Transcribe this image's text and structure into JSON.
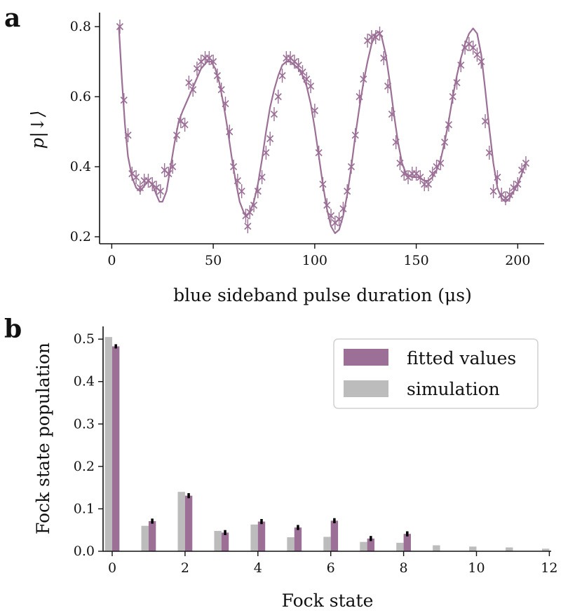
{
  "chart_data": [
    {
      "id": "a",
      "panel_label": "a",
      "type": "scatter",
      "xlabel": "blue sideband pulse duration (μs)",
      "ylabel": "p|↓⟩",
      "xlim": [
        -6,
        213
      ],
      "ylim": [
        0.18,
        0.84
      ],
      "xticks": [
        0,
        50,
        100,
        150,
        200
      ],
      "yticks": [
        0.2,
        0.4,
        0.6,
        0.8
      ],
      "color": "#9b6f96",
      "grid": false,
      "series": [
        {
          "name": "measured",
          "marker": "x",
          "points": [
            [
              4,
              0.8,
              0.02
            ],
            [
              6,
              0.59,
              0.02
            ],
            [
              8,
              0.49,
              0.02
            ],
            [
              10,
              0.38,
              0.02
            ],
            [
              12,
              0.37,
              0.02
            ],
            [
              14,
              0.34,
              0.02
            ],
            [
              16,
              0.36,
              0.02
            ],
            [
              18,
              0.36,
              0.02
            ],
            [
              20,
              0.35,
              0.02
            ],
            [
              22,
              0.34,
              0.02
            ],
            [
              24,
              0.33,
              0.02
            ],
            [
              26,
              0.39,
              0.02
            ],
            [
              28,
              0.38,
              0.02
            ],
            [
              30,
              0.4,
              0.02
            ],
            [
              32,
              0.49,
              0.02
            ],
            [
              34,
              0.53,
              0.02
            ],
            [
              36,
              0.52,
              0.02
            ],
            [
              38,
              0.64,
              0.02
            ],
            [
              40,
              0.62,
              0.02
            ],
            [
              42,
              0.68,
              0.02
            ],
            [
              44,
              0.7,
              0.02
            ],
            [
              46,
              0.71,
              0.02
            ],
            [
              48,
              0.71,
              0.02
            ],
            [
              50,
              0.7,
              0.02
            ],
            [
              52,
              0.66,
              0.02
            ],
            [
              54,
              0.62,
              0.02
            ],
            [
              56,
              0.58,
              0.02
            ],
            [
              58,
              0.5,
              0.02
            ],
            [
              60,
              0.4,
              0.02
            ],
            [
              62,
              0.36,
              0.02
            ],
            [
              64,
              0.33,
              0.02
            ],
            [
              66,
              0.26,
              0.02
            ],
            [
              67,
              0.23,
              0.02
            ],
            [
              68,
              0.27,
              0.02
            ],
            [
              70,
              0.29,
              0.02
            ],
            [
              72,
              0.33,
              0.02
            ],
            [
              74,
              0.37,
              0.02
            ],
            [
              76,
              0.44,
              0.02
            ],
            [
              78,
              0.48,
              0.02
            ],
            [
              80,
              0.55,
              0.02
            ],
            [
              82,
              0.6,
              0.02
            ],
            [
              84,
              0.66,
              0.02
            ],
            [
              86,
              0.71,
              0.02
            ],
            [
              88,
              0.71,
              0.02
            ],
            [
              90,
              0.7,
              0.02
            ],
            [
              92,
              0.69,
              0.02
            ],
            [
              94,
              0.67,
              0.02
            ],
            [
              96,
              0.65,
              0.02
            ],
            [
              98,
              0.63,
              0.02
            ],
            [
              100,
              0.56,
              0.02
            ],
            [
              102,
              0.44,
              0.02
            ],
            [
              104,
              0.35,
              0.02
            ],
            [
              106,
              0.29,
              0.02
            ],
            [
              108,
              0.26,
              0.02
            ],
            [
              110,
              0.24,
              0.02
            ],
            [
              112,
              0.25,
              0.02
            ],
            [
              114,
              0.28,
              0.02
            ],
            [
              116,
              0.33,
              0.02
            ],
            [
              118,
              0.4,
              0.02
            ],
            [
              120,
              0.49,
              0.02
            ],
            [
              122,
              0.6,
              0.02
            ],
            [
              124,
              0.65,
              0.02
            ],
            [
              126,
              0.76,
              0.02
            ],
            [
              128,
              0.77,
              0.02
            ],
            [
              130,
              0.77,
              0.02
            ],
            [
              132,
              0.78,
              0.02
            ],
            [
              134,
              0.71,
              0.02
            ],
            [
              136,
              0.63,
              0.02
            ],
            [
              138,
              0.55,
              0.02
            ],
            [
              140,
              0.47,
              0.02
            ],
            [
              142,
              0.41,
              0.02
            ],
            [
              144,
              0.38,
              0.02
            ],
            [
              146,
              0.37,
              0.02
            ],
            [
              148,
              0.38,
              0.02
            ],
            [
              150,
              0.38,
              0.02
            ],
            [
              152,
              0.37,
              0.02
            ],
            [
              154,
              0.35,
              0.02
            ],
            [
              156,
              0.35,
              0.02
            ],
            [
              158,
              0.38,
              0.02
            ],
            [
              160,
              0.4,
              0.02
            ],
            [
              162,
              0.41,
              0.02
            ],
            [
              164,
              0.47,
              0.02
            ],
            [
              166,
              0.52,
              0.02
            ],
            [
              168,
              0.6,
              0.02
            ],
            [
              170,
              0.64,
              0.02
            ],
            [
              172,
              0.69,
              0.02
            ],
            [
              174,
              0.74,
              0.02
            ],
            [
              176,
              0.75,
              0.02
            ],
            [
              178,
              0.74,
              0.02
            ],
            [
              180,
              0.72,
              0.02
            ],
            [
              182,
              0.7,
              0.02
            ],
            [
              184,
              0.53,
              0.02
            ],
            [
              186,
              0.44,
              0.02
            ],
            [
              188,
              0.33,
              0.02
            ],
            [
              190,
              0.37,
              0.02
            ],
            [
              192,
              0.32,
              0.02
            ],
            [
              194,
              0.31,
              0.02
            ],
            [
              196,
              0.32,
              0.02
            ],
            [
              198,
              0.34,
              0.02
            ],
            [
              200,
              0.35,
              0.02
            ],
            [
              202,
              0.39,
              0.02
            ],
            [
              204,
              0.41,
              0.02
            ]
          ]
        },
        {
          "name": "fit",
          "line": true,
          "points": [
            [
              3.5,
              0.8
            ],
            [
              5,
              0.65
            ],
            [
              6.5,
              0.52
            ],
            [
              8,
              0.43
            ],
            [
              10,
              0.37
            ],
            [
              12,
              0.34
            ],
            [
              14,
              0.33
            ],
            [
              16,
              0.345
            ],
            [
              18,
              0.36
            ],
            [
              20,
              0.35
            ],
            [
              22,
              0.32
            ],
            [
              23.5,
              0.3
            ],
            [
              25,
              0.3
            ],
            [
              27,
              0.33
            ],
            [
              29,
              0.4
            ],
            [
              31,
              0.47
            ],
            [
              33,
              0.53
            ],
            [
              35,
              0.56
            ],
            [
              38,
              0.6
            ],
            [
              41,
              0.64
            ],
            [
              44,
              0.68
            ],
            [
              47,
              0.7
            ],
            [
              49,
              0.7
            ],
            [
              51,
              0.68
            ],
            [
              53,
              0.64
            ],
            [
              55,
              0.58
            ],
            [
              57,
              0.51
            ],
            [
              59,
              0.43
            ],
            [
              61,
              0.36
            ],
            [
              63,
              0.3
            ],
            [
              65,
              0.27
            ],
            [
              66.5,
              0.26
            ],
            [
              68,
              0.27
            ],
            [
              70,
              0.3
            ],
            [
              72,
              0.35
            ],
            [
              74,
              0.42
            ],
            [
              76,
              0.5
            ],
            [
              78,
              0.57
            ],
            [
              80,
              0.62
            ],
            [
              82,
              0.66
            ],
            [
              84,
              0.69
            ],
            [
              86,
              0.7
            ],
            [
              88,
              0.7
            ],
            [
              90,
              0.69
            ],
            [
              92,
              0.68
            ],
            [
              94,
              0.66
            ],
            [
              96,
              0.63
            ],
            [
              98,
              0.58
            ],
            [
              100,
              0.51
            ],
            [
              102,
              0.43
            ],
            [
              104,
              0.35
            ],
            [
              106,
              0.28
            ],
            [
              108,
              0.23
            ],
            [
              110,
              0.21
            ],
            [
              112,
              0.22
            ],
            [
              114,
              0.26
            ],
            [
              116,
              0.32
            ],
            [
              118,
              0.4
            ],
            [
              120,
              0.49
            ],
            [
              122,
              0.57
            ],
            [
              124,
              0.64
            ],
            [
              126,
              0.7
            ],
            [
              128,
              0.75
            ],
            [
              130,
              0.78
            ],
            [
              131.5,
              0.785
            ],
            [
              133,
              0.77
            ],
            [
              135,
              0.72
            ],
            [
              137,
              0.64
            ],
            [
              139,
              0.55
            ],
            [
              141,
              0.47
            ],
            [
              143,
              0.41
            ],
            [
              145,
              0.38
            ],
            [
              148,
              0.37
            ],
            [
              151,
              0.37
            ],
            [
              154,
              0.36
            ],
            [
              156,
              0.36
            ],
            [
              158,
              0.37
            ],
            [
              160,
              0.39
            ],
            [
              162,
              0.42
            ],
            [
              164,
              0.47
            ],
            [
              166,
              0.53
            ],
            [
              168,
              0.6
            ],
            [
              170,
              0.66
            ],
            [
              172,
              0.71
            ],
            [
              174,
              0.75
            ],
            [
              176,
              0.78
            ],
            [
              178,
              0.795
            ],
            [
              180,
              0.78
            ],
            [
              182,
              0.72
            ],
            [
              184,
              0.62
            ],
            [
              186,
              0.51
            ],
            [
              188,
              0.41
            ],
            [
              190,
              0.34
            ],
            [
              192,
              0.31
            ],
            [
              194,
              0.3
            ],
            [
              196,
              0.31
            ],
            [
              198,
              0.33
            ],
            [
              200,
              0.35
            ],
            [
              202,
              0.38
            ],
            [
              204,
              0.41
            ]
          ]
        }
      ]
    },
    {
      "id": "b",
      "panel_label": "b",
      "type": "bar",
      "xlabel": "Fock state",
      "ylabel": "Fock state population",
      "xlim": [
        -0.25,
        12.05
      ],
      "ylim": [
        0,
        0.53
      ],
      "xticks": [
        0,
        2,
        4,
        6,
        8,
        10,
        12
      ],
      "yticks": [
        0.0,
        0.1,
        0.2,
        0.3,
        0.4,
        0.5
      ],
      "legend": {
        "position": "top-right"
      },
      "series": [
        {
          "name": "fitted values",
          "color": "#9b6f96",
          "x": [
            0,
            1,
            2,
            3,
            4,
            5,
            6,
            7,
            8
          ],
          "values": [
            0.483,
            0.071,
            0.131,
            0.044,
            0.07,
            0.056,
            0.072,
            0.03,
            0.041
          ],
          "errors": [
            0.005,
            0.006,
            0.006,
            0.006,
            0.006,
            0.006,
            0.006,
            0.006,
            0.006
          ]
        },
        {
          "name": "simulation",
          "color": "#bcbcbc",
          "x": [
            0,
            1,
            2,
            3,
            4,
            5,
            6,
            7,
            8,
            9,
            10,
            11,
            12
          ],
          "values": [
            0.505,
            0.06,
            0.14,
            0.048,
            0.063,
            0.033,
            0.034,
            0.022,
            0.02,
            0.014,
            0.011,
            0.009,
            0.006
          ]
        }
      ]
    }
  ]
}
